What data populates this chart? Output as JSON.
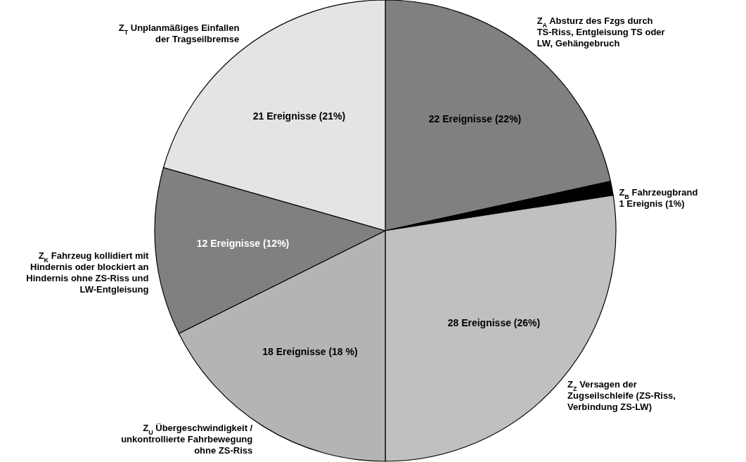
{
  "chart_data": {
    "type": "pie",
    "categories": [
      "Z$_{A}$ Absturz des Fzgs durch TS-Riss, Entgleisung TS oder LW, Gehängebruch",
      "Z$_{B}$ Fahrzeugbrand",
      "Z$_{Z}$ Versagen der Zugseilschleife (ZS-Riss, Verbindung ZS-LW)",
      "Z$_{U}$ Übergeschwindigkeit / unkontrollierte Fahrbewegung ohne ZS-Riss",
      "Z$_{K}$ Fahrzeug kollidiert mit Hindernis oder blockiert an Hindernis ohne ZS-Riss und LW-Entgleisung",
      "Z$_{T}$ Unplanmäßiges Einfallen der Tragseilbremse"
    ],
    "values": [
      22,
      1,
      28,
      18,
      12,
      21
    ],
    "value_labels": [
      "22 Ereignisse (22%)",
      "1 Ereignis (1%)",
      "28 Ereignisse (26%)",
      "18 Ereignisse (18 %)",
      "12 Ereignisse (12%)",
      "21 Ereignisse (21%)"
    ],
    "colors": [
      "#808080",
      "#000000",
      "#c0c0c0",
      "#b4b4b4",
      "#808080",
      "#e4e4e4"
    ]
  }
}
